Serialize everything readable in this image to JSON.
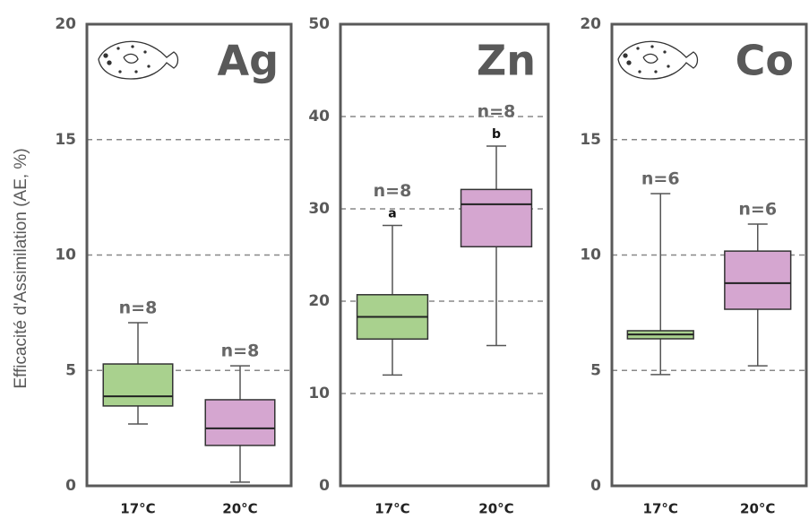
{
  "chart_data": [
    {
      "type": "box",
      "title": "Ag",
      "y_label": "Efficacité d'Assimilation (AE, %)",
      "categories": [
        "17°C",
        "20°C"
      ],
      "colors": [
        "#a9d18e",
        "#d5a6d0"
      ],
      "boxes": [
        {
          "min": 2.68,
          "q1": 3.46,
          "median": 3.88,
          "q3": 5.28,
          "max": 7.07
        },
        {
          "min": 0.16,
          "q1": 1.75,
          "median": 2.49,
          "q3": 3.73,
          "max": 5.2
        }
      ],
      "n_labels": [
        "n=8",
        "n=8"
      ],
      "ylim": [
        0,
        20
      ],
      "yticks": [
        0,
        5,
        10,
        15,
        20
      ],
      "grid": true
    },
    {
      "type": "box",
      "title": "Zn",
      "categories": [
        "17°C",
        "20°C"
      ],
      "colors": [
        "#a9d18e",
        "#d5a6d0"
      ],
      "boxes": [
        {
          "min": 12.0,
          "q1": 15.9,
          "median": 18.3,
          "q3": 20.7,
          "max": 28.2
        },
        {
          "min": 15.2,
          "q1": 25.9,
          "median": 30.5,
          "q3": 32.1,
          "max": 36.8
        }
      ],
      "n_labels": [
        "n=8",
        "n=8"
      ],
      "letters": [
        "a",
        "b"
      ],
      "ylim": [
        0,
        50
      ],
      "yticks": [
        0,
        10,
        20,
        30,
        40,
        50
      ],
      "grid": true
    },
    {
      "type": "box",
      "title": "Co",
      "categories": [
        "17°C",
        "20°C"
      ],
      "colors": [
        "#a9d18e",
        "#d5a6d0"
      ],
      "boxes": [
        {
          "min": 4.82,
          "q1": 6.37,
          "median": 6.56,
          "q3": 6.72,
          "max": 12.66
        },
        {
          "min": 5.2,
          "q1": 7.65,
          "median": 8.78,
          "q3": 10.17,
          "max": 11.34
        }
      ],
      "n_labels": [
        "n=6",
        "n=6"
      ],
      "ylim": [
        0,
        20
      ],
      "yticks": [
        0,
        5,
        10,
        15,
        20
      ],
      "grid": true
    }
  ]
}
